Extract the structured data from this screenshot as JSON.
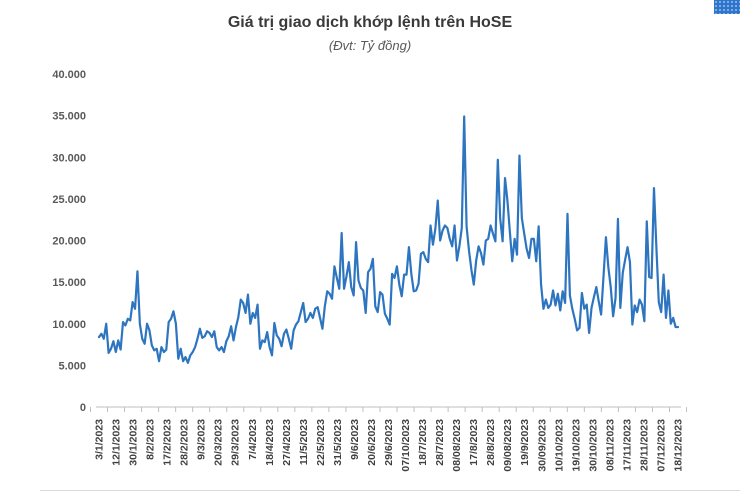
{
  "chart_data": {
    "type": "line",
    "title": "Giá trị giao dịch khớp lệnh trên HoSE",
    "subtitle": "(Đvt: Tỷ đồng)",
    "xlabel": "",
    "ylabel": "",
    "ylim": [
      0,
      40000
    ],
    "yticks": [
      0,
      5000,
      10000,
      15000,
      20000,
      25000,
      30000,
      35000,
      40000
    ],
    "ytick_labels": [
      "0",
      "5.000",
      "10.000",
      "15.000",
      "20.000",
      "25.000",
      "30.000",
      "35.000",
      "40.000"
    ],
    "xtick_labels": [
      "3/1/2023",
      "12/1/2023",
      "30/1/2023",
      "8/2/2023",
      "17/2/2023",
      "28/2/2023",
      "9/3/2023",
      "20/3/2023",
      "29/3/2023",
      "7/4/2023",
      "18/4/2023",
      "27/4/2023",
      "11/5/2023",
      "22/5/2023",
      "31/5/2023",
      "9/6/2023",
      "20/6/2023",
      "29/6/2023",
      "07/10/2023",
      "18/7/2023",
      "28/7/2023",
      "08/08/2023",
      "17/8/2023",
      "28/8/2023",
      "09/08/2023",
      "19/9/2023",
      "30/09/2023",
      "10/10/2023",
      "19/10/2023",
      "30/10/2023",
      "08/11/2023",
      "17/11/2023",
      "28/11/2023",
      "07/12/2023",
      "18/12/2023"
    ],
    "grid": false,
    "legend": "none",
    "line_color": "#2e75c0",
    "values": [
      8400,
      8800,
      8200,
      10000,
      6500,
      7000,
      7900,
      6600,
      8000,
      6900,
      10200,
      9800,
      10600,
      10400,
      12600,
      11800,
      16300,
      10000,
      8200,
      7600,
      10000,
      9200,
      7400,
      6800,
      7000,
      5500,
      7200,
      6600,
      6900,
      10200,
      10600,
      11500,
      10000,
      5800,
      7000,
      5500,
      6000,
      5300,
      6200,
      6600,
      7200,
      8200,
      9400,
      8300,
      8500,
      9100,
      8900,
      8400,
      9100,
      7200,
      6800,
      7200,
      6600,
      7900,
      8500,
      9700,
      8000,
      9600,
      10800,
      12900,
      12500,
      11300,
      13500,
      10000,
      11300,
      10700,
      12300,
      7000,
      8000,
      7800,
      9000,
      7200,
      6200,
      10100,
      8600,
      8200,
      7300,
      8800,
      9300,
      8200,
      7000,
      9200,
      9900,
      10300,
      11400,
      12500,
      10200,
      10600,
      11300,
      10700,
      11800,
      12000,
      10700,
      9400,
      12100,
      13900,
      13600,
      13000,
      16900,
      15500,
      14200,
      20900,
      14200,
      15700,
      17400,
      14400,
      13400,
      19800,
      15200,
      14300,
      14000,
      11300,
      16200,
      16600,
      17800,
      12100,
      11400,
      13800,
      13500,
      11200,
      10600,
      9900,
      16000,
      15500,
      16900,
      14700,
      13300,
      15900,
      15900,
      19200,
      16000,
      13900,
      14000,
      14800,
      18400,
      18600,
      17800,
      17400,
      21800,
      19500,
      21400,
      24800,
      20000,
      21200,
      21800,
      21500,
      20200,
      19300,
      21800,
      17600,
      19300,
      21500,
      34900,
      21700,
      18800,
      16500,
      14700,
      17600,
      19300,
      18500,
      17100,
      20000,
      20200,
      21800,
      20800,
      19900,
      29700,
      22600,
      19900,
      27500,
      24800,
      21100,
      17500,
      20200,
      18300,
      30200,
      22700,
      20800,
      19000,
      17900,
      20200,
      20200,
      17500,
      21700,
      14700,
      11800,
      12900,
      11900,
      12300,
      14000,
      12200,
      13600,
      11600,
      13900,
      12500,
      23200,
      13400,
      11800,
      10600,
      9200,
      9500,
      13700,
      11800,
      12300,
      8900,
      11900,
      13200,
      14400,
      12700,
      11100,
      15700,
      20400,
      16800,
      14400,
      10900,
      13100,
      22600,
      11900,
      16100,
      17700,
      19200,
      17400,
      9900,
      12200,
      11400,
      12900,
      12300,
      10300,
      22300,
      15600,
      15500,
      26300,
      19200,
      12600,
      11400,
      15900,
      10700,
      14000,
      10000,
      10700,
      9600,
      9600
    ]
  }
}
